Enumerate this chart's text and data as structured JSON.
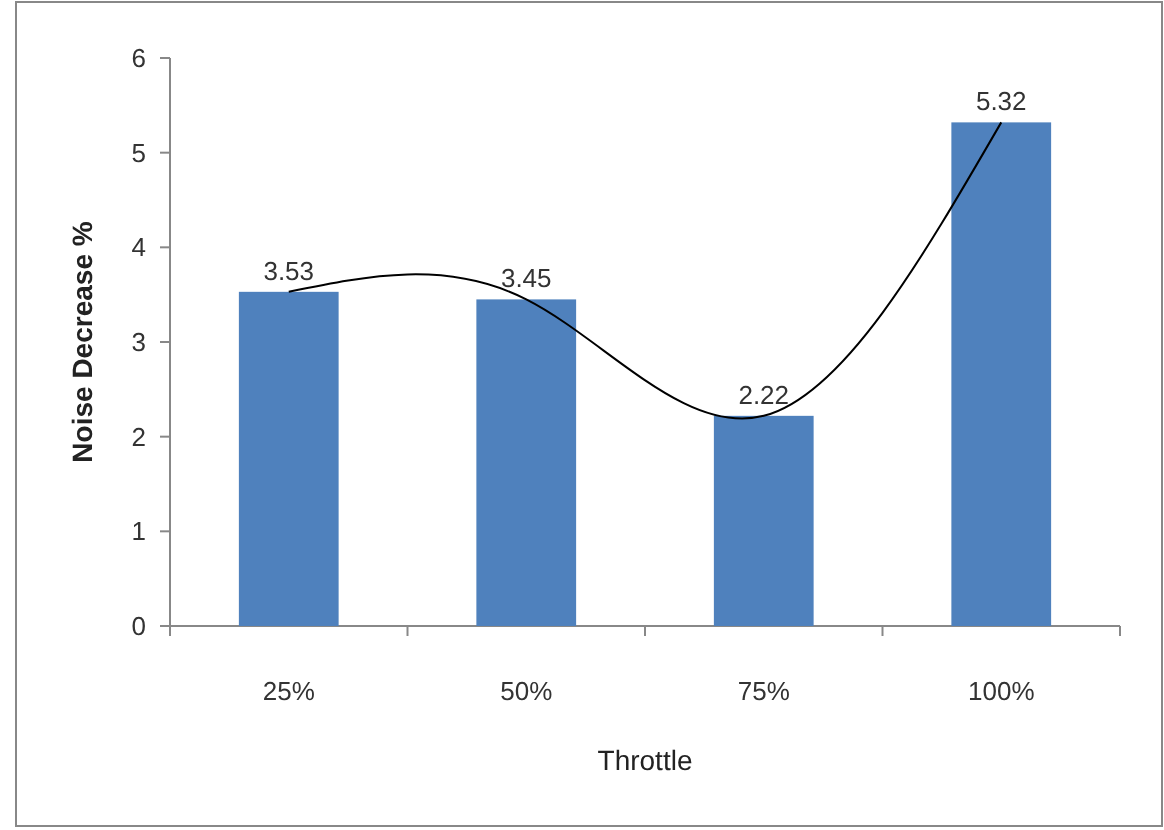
{
  "chart_data": {
    "type": "bar",
    "xlabel": "Throttle",
    "ylabel": "Noise Decrease %",
    "categories": [
      "25%",
      "50%",
      "75%",
      "100%"
    ],
    "series": [
      {
        "color": "#4f81bd",
        "values": [
          3.53,
          3.45,
          2.22,
          5.32
        ],
        "value_labels": [
          "3.53",
          "3.45",
          "2.22",
          "5.32"
        ]
      },
      {
        "type": "line",
        "color": "#000000",
        "values": [
          3.53,
          3.45,
          2.22,
          5.32
        ]
      }
    ],
    "ylim": [
      0,
      6
    ],
    "yticks": [
      0,
      1,
      2,
      3,
      4,
      5,
      6
    ],
    "grid": false
  }
}
